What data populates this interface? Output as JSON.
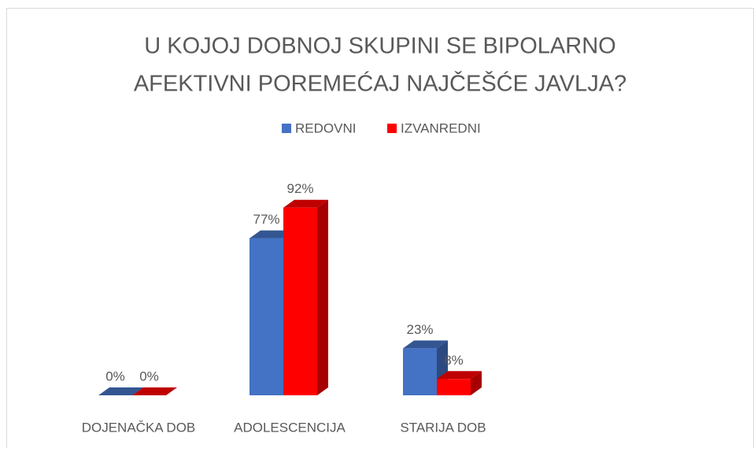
{
  "chart_data": {
    "type": "bar3d",
    "title_lines": [
      "U KOJOJ DOBNOJ SKUPINI SE BIPOLARNO",
      "AFEKTIVNI POREMEĆAJ NAJČEŠĆE JAVLJA?"
    ],
    "categories": [
      "DOJENAČKA DOB",
      "ADOLESCENCIJA",
      "STARIJA DOB"
    ],
    "series": [
      {
        "name": "REDOVNI",
        "color": "#4472c4",
        "values": [
          0,
          77,
          23
        ],
        "value_labels": [
          "0%",
          "77%",
          "23%"
        ]
      },
      {
        "name": "IZVANREDNI",
        "color": "#ff0000",
        "values": [
          0,
          92,
          8
        ],
        "value_labels": [
          "0%",
          "92%",
          "8%"
        ]
      }
    ]
  }
}
